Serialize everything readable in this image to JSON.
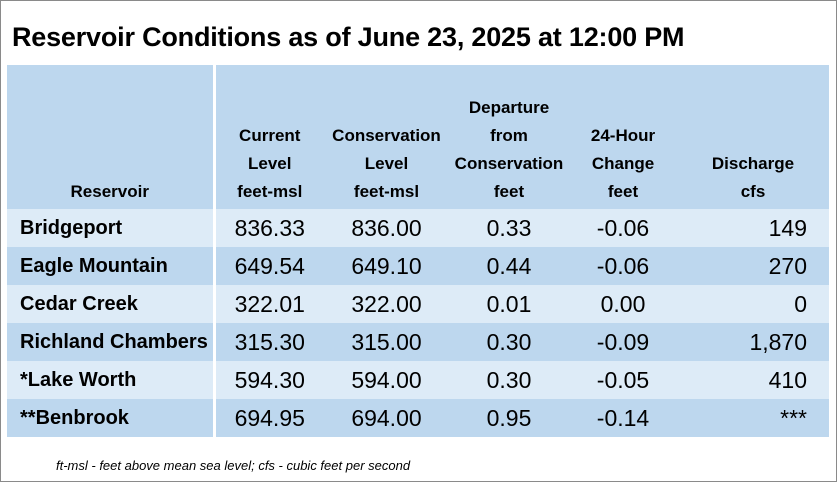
{
  "title": "Reservoir Conditions as of June 23, 2025 at 12:00 PM",
  "columns": [
    {
      "lines": [
        "Reservoir"
      ]
    },
    {
      "lines": [
        "Current",
        "Level",
        "feet-msl"
      ]
    },
    {
      "lines": [
        "Conservation",
        "Level",
        "feet-msl"
      ]
    },
    {
      "lines": [
        "Departure",
        "from",
        "Conservation",
        "feet"
      ]
    },
    {
      "lines": [
        "24-Hour",
        "Change",
        "feet"
      ]
    },
    {
      "lines": [
        "Discharge",
        "cfs"
      ]
    }
  ],
  "rows": [
    {
      "reservoir": "Bridgeport",
      "current": "836.33",
      "conservation": "836.00",
      "departure": "0.33",
      "change": "-0.06",
      "discharge": "149"
    },
    {
      "reservoir": "Eagle Mountain",
      "current": "649.54",
      "conservation": "649.10",
      "departure": "0.44",
      "change": "-0.06",
      "discharge": "270"
    },
    {
      "reservoir": "Cedar Creek",
      "current": "322.01",
      "conservation": "322.00",
      "departure": "0.01",
      "change": "0.00",
      "discharge": "0"
    },
    {
      "reservoir": "Richland Chambers",
      "current": "315.30",
      "conservation": "315.00",
      "departure": "0.30",
      "change": "-0.09",
      "discharge": "1,870"
    },
    {
      "reservoir": "*Lake Worth",
      "current": "594.30",
      "conservation": "594.00",
      "departure": "0.30",
      "change": "-0.05",
      "discharge": "410"
    },
    {
      "reservoir": "**Benbrook",
      "current": "694.95",
      "conservation": "694.00",
      "departure": "0.95",
      "change": "-0.14",
      "discharge": "***"
    }
  ],
  "footnote": "ft-msl - feet above mean sea level; cfs - cubic feet per second",
  "colors": {
    "header_bg": "#bdd7ee",
    "row_light": "#ddebf7",
    "row_dark": "#bdd7ee"
  }
}
